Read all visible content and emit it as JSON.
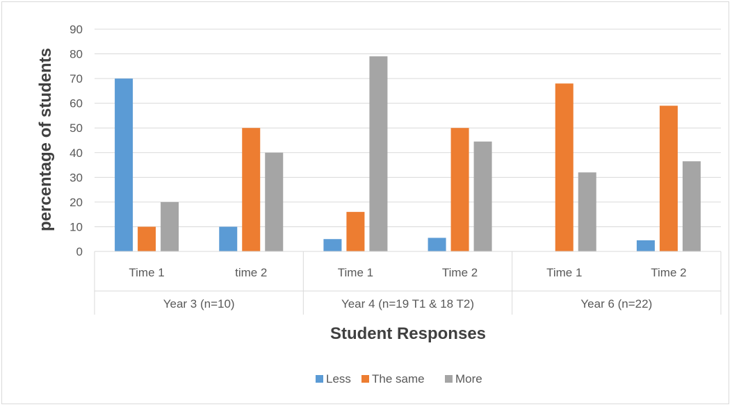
{
  "chart_data": {
    "type": "bar",
    "title": "",
    "xlabel": "Student Responses",
    "ylabel": "percentage of students",
    "ylim": [
      0,
      90
    ],
    "yticks": [
      0,
      10,
      20,
      30,
      40,
      50,
      60,
      70,
      80,
      90
    ],
    "grid": true,
    "legend_position": "bottom",
    "groups": [
      {
        "label": "Year 3 (n=10)",
        "categories": [
          "Time 1",
          "time 2"
        ]
      },
      {
        "label": "Year 4 (n=19 T1 & 18 T2)",
        "categories": [
          "Time 1",
          "Time 2"
        ]
      },
      {
        "label": "Year 6 (n=22)",
        "categories": [
          "Time 1",
          "Time 2"
        ]
      }
    ],
    "categories": [
      "Time 1",
      "time 2",
      "Time 1",
      "Time 2",
      "Time 1",
      "Time 2"
    ],
    "series": [
      {
        "name": "Less",
        "color": "#5b9bd5",
        "values": [
          70,
          10,
          5,
          5.5,
          0,
          4.5
        ]
      },
      {
        "name": "The same",
        "color": "#ed7d31",
        "values": [
          10,
          50,
          16,
          50,
          68,
          59
        ]
      },
      {
        "name": "More",
        "color": "#a5a5a5",
        "values": [
          20,
          40,
          79,
          44.5,
          32,
          36.5
        ]
      }
    ]
  }
}
